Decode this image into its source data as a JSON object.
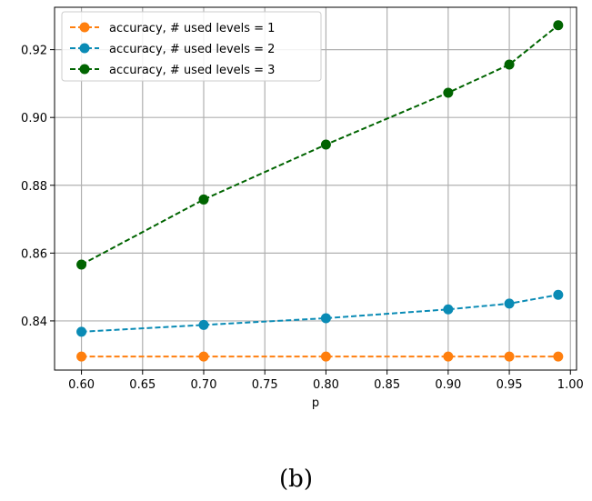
{
  "chart_data": {
    "type": "line",
    "xlabel": "p",
    "ylabel": "",
    "x": [
      0.6,
      0.7,
      0.8,
      0.9,
      0.95,
      0.99
    ],
    "xlim": [
      0.578,
      1.005
    ],
    "ylim": [
      0.8255,
      0.9325
    ],
    "xticks": [
      0.6,
      0.65,
      0.7,
      0.75,
      0.8,
      0.85,
      0.9,
      0.95,
      1.0
    ],
    "xtick_labels": [
      "0.60",
      "0.65",
      "0.70",
      "0.75",
      "0.80",
      "0.85",
      "0.90",
      "0.95",
      "1.00"
    ],
    "yticks": [
      0.84,
      0.86,
      0.88,
      0.9,
      0.92
    ],
    "ytick_labels": [
      "0.84",
      "0.86",
      "0.88",
      "0.90",
      "0.92"
    ],
    "grid": true,
    "legend_position": "top-left",
    "series": [
      {
        "name": "accuracy, # used levels = 1",
        "color": "#ff7f0e",
        "values": [
          0.8295,
          0.8295,
          0.8295,
          0.8295,
          0.8295,
          0.8295
        ]
      },
      {
        "name": "accuracy, # used levels = 2",
        "color": "#0a8bb5",
        "values": [
          0.8368,
          0.8388,
          0.8408,
          0.8434,
          0.8451,
          0.8477
        ]
      },
      {
        "name": "accuracy, # used levels = 3",
        "color": "#006400",
        "values": [
          0.8566,
          0.8758,
          0.892,
          0.9073,
          0.9156,
          0.9272
        ]
      }
    ]
  },
  "caption": "(b)"
}
